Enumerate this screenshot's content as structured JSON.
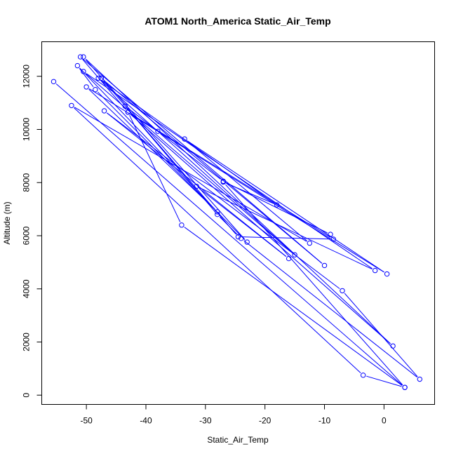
{
  "chart_data": {
    "type": "line",
    "title": "ATOM1 North_America Static_Air_Temp",
    "xlabel": "Static_Air_Temp",
    "ylabel": "Altitude (m)",
    "xlim": [
      -57.5,
      8.5
    ],
    "ylim": [
      -350,
      13300
    ],
    "x_ticks": [
      -50,
      -40,
      -30,
      -20,
      -10,
      0
    ],
    "x_tick_labels": [
      "-50",
      "-40",
      "-30",
      "-20",
      "-10",
      "0"
    ],
    "y_ticks": [
      0,
      2000,
      4000,
      6000,
      8000,
      10000,
      12000
    ],
    "y_tick_labels": [
      "0",
      "2000",
      "4000",
      "6000",
      "8000",
      "10000",
      "12000"
    ],
    "series_color": "#0000ff",
    "marker": "open-circle",
    "series": [
      {
        "x": [
          -55.5,
          3.5,
          -3.5,
          -52.5,
          -12.5,
          -33.5,
          0.5,
          -50.0,
          -28.0,
          -51.5,
          -48.5,
          -23.0,
          -50.5,
          1.5,
          -43.0,
          -8.5,
          -24.5,
          -47.5,
          -10.0,
          -51.0,
          -43.0,
          -34.0,
          3.5,
          -27.0,
          -18.0,
          -48.0,
          -38.0,
          -15.0,
          -50.5,
          -1.5,
          -31.5,
          -16.0,
          -47.0,
          -7.0,
          6.0,
          -24.0,
          -28.0,
          -43.5,
          -27.0,
          -9.0
        ],
        "y": [
          11800,
          290,
          750,
          10900,
          5720,
          9640,
          4560,
          11600,
          6900,
          12400,
          11500,
          5760,
          12730,
          1850,
          10650,
          5870,
          5960,
          11930,
          4880,
          12730,
          10650,
          6400,
          290,
          8020,
          7160,
          11930,
          9930,
          5280,
          12180,
          4690,
          7860,
          5140,
          10700,
          3930,
          600,
          5900,
          6800,
          10880,
          8050,
          6050
        ]
      }
    ]
  }
}
